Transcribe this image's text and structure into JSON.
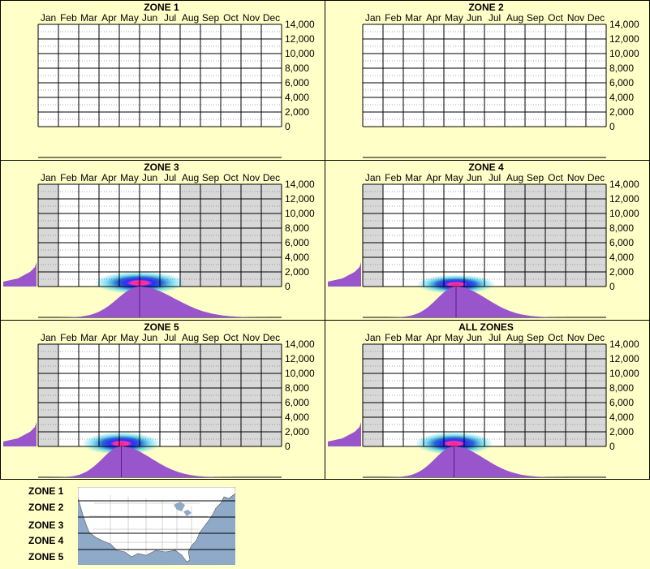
{
  "months": [
    "Jan",
    "Feb",
    "Mar",
    "Apr",
    "May",
    "Jun",
    "Jul",
    "Aug",
    "Sep",
    "Oct",
    "Nov",
    "Dec"
  ],
  "y_ticks": [
    "14,000",
    "12,000",
    "10,000",
    "8,000",
    "6,000",
    "4,000",
    "2,000",
    "0"
  ],
  "chart_data": [
    {
      "type": "heatmap",
      "title": "ZONE 1",
      "has_data": false,
      "ylim": [
        0,
        14000
      ]
    },
    {
      "type": "heatmap",
      "title": "ZONE 2",
      "has_data": false,
      "ylim": [
        0,
        14000
      ]
    },
    {
      "type": "heatmap",
      "title": "ZONE 3",
      "has_data": true,
      "ylim": [
        0,
        14000
      ],
      "active_month_range": [
        1,
        5.5
      ],
      "peak_month": 5.0,
      "spread_months": 0.7,
      "peak_elevation": 500,
      "elevation_spread": 700
    },
    {
      "type": "heatmap",
      "title": "ZONE 4",
      "has_data": true,
      "ylim": [
        0,
        14000
      ],
      "active_month_range": [
        1,
        5.5
      ],
      "peak_month": 4.6,
      "spread_months": 0.6,
      "peak_elevation": 300,
      "elevation_spread": 600
    },
    {
      "type": "heatmap",
      "title": "ZONE 5",
      "has_data": true,
      "ylim": [
        0,
        14000
      ],
      "active_month_range": [
        1,
        5.5
      ],
      "peak_month": 4.1,
      "spread_months": 0.6,
      "peak_elevation": 400,
      "elevation_spread": 700
    },
    {
      "type": "heatmap",
      "title": "ALL ZONES",
      "has_data": true,
      "ylim": [
        0,
        14000
      ],
      "active_month_range": [
        1,
        5.5
      ],
      "peak_month": 4.5,
      "spread_months": 0.6,
      "peak_elevation": 400,
      "elevation_spread": 700
    }
  ],
  "legend": {
    "zones": [
      "ZONE 1",
      "ZONE 2",
      "ZONE 3",
      "ZONE 4",
      "ZONE 5"
    ]
  },
  "colors": {
    "background": "#ffffc8",
    "inactive_cell": "#d8d8d8",
    "marginal_fill": "#9955cc",
    "hot": "#ff1a8a",
    "mid": "#2a2aff",
    "cool": "#38d0e8",
    "map_water": "#8fa9c9",
    "map_land": "#ffffff"
  }
}
